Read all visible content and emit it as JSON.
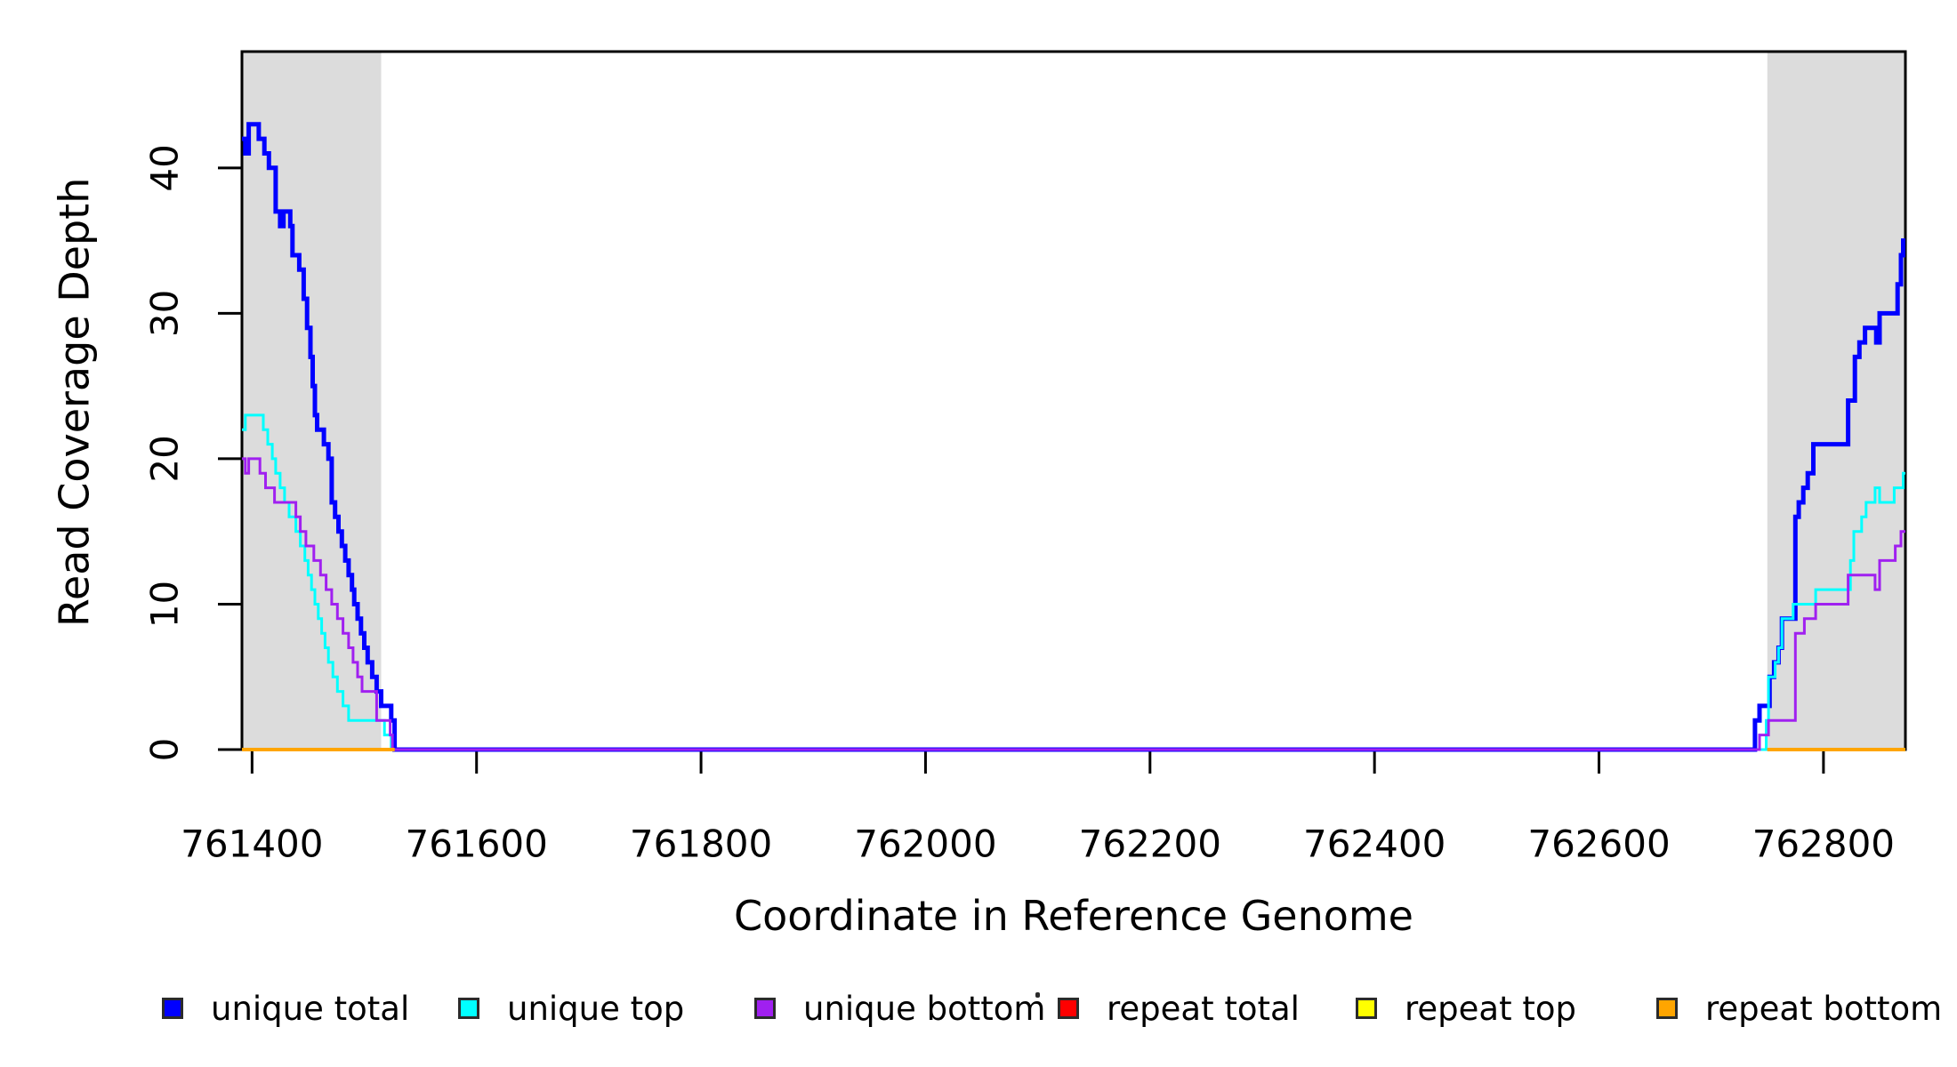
{
  "figure": {
    "background": "#FFFFFF",
    "band_color": "#DCDCDC",
    "axis_color": "#000000",
    "text_color": "#000000"
  },
  "chart_data": {
    "type": "line",
    "subtype": "step",
    "title": "",
    "xlabel": "Coordinate in Reference Genome",
    "ylabel": "Read Coverage Depth",
    "xlim": [
      761391,
      762873
    ],
    "ylim": [
      0,
      48
    ],
    "x_ticks": [
      761400,
      761600,
      761800,
      762000,
      762200,
      762400,
      762600,
      762800
    ],
    "y_ticks": [
      0,
      10,
      20,
      30,
      40
    ],
    "grid": false,
    "legend_position": "bottom",
    "shaded_regions": [
      {
        "name": "repeat-region-left",
        "x1": 761391,
        "x2": 761515
      },
      {
        "name": "repeat-region-right",
        "x1": 762750,
        "x2": 762873
      }
    ],
    "annotations": [
      {
        "type": "small-dot",
        "description": "tiny stray mark left of repeat total legend entry"
      }
    ],
    "series": [
      {
        "name": "unique total",
        "color": "#0000FF",
        "width": 5,
        "segments": [
          {
            "steps": [
              [
                761391,
                42
              ],
              [
                761394,
                41
              ],
              [
                761397,
                43
              ],
              [
                761406,
                42
              ],
              [
                761411,
                41
              ],
              [
                761415,
                40
              ],
              [
                761421,
                37
              ],
              [
                761425,
                36
              ],
              [
                761428,
                37
              ],
              [
                761434,
                36
              ],
              [
                761436,
                34
              ],
              [
                761442,
                33
              ],
              [
                761446,
                31
              ],
              [
                761449,
                29
              ],
              [
                761452,
                27
              ],
              [
                761454,
                25
              ],
              [
                761456,
                23
              ],
              [
                761458,
                22
              ],
              [
                761464,
                21
              ],
              [
                761468,
                20
              ],
              [
                761471,
                17
              ],
              [
                761474,
                16
              ],
              [
                761477,
                15
              ],
              [
                761480,
                14
              ],
              [
                761483,
                13
              ],
              [
                761486,
                12
              ],
              [
                761489,
                11
              ],
              [
                761491,
                10
              ],
              [
                761494,
                9
              ],
              [
                761497,
                8
              ],
              [
                761500,
                7
              ],
              [
                761503,
                6
              ],
              [
                761507,
                5
              ],
              [
                761511,
                4
              ],
              [
                761515,
                3
              ],
              [
                761524,
                2
              ],
              [
                761527,
                0
              ],
              [
                762739,
                2
              ],
              [
                762743,
                3
              ],
              [
                762752,
                5
              ],
              [
                762756,
                6
              ],
              [
                762760,
                7
              ],
              [
                762763,
                9
              ],
              [
                762775,
                16
              ],
              [
                762778,
                17
              ],
              [
                762782,
                18
              ],
              [
                762786,
                19
              ],
              [
                762791,
                21
              ],
              [
                762822,
                24
              ],
              [
                762828,
                27
              ],
              [
                762832,
                28
              ],
              [
                762837,
                29
              ],
              [
                762847,
                28
              ],
              [
                762850,
                30
              ],
              [
                762866,
                32
              ],
              [
                762869,
                34
              ],
              [
                762871,
                35
              ]
            ],
            "end": 762873
          }
        ]
      },
      {
        "name": "unique top",
        "color": "#00FFFF",
        "width": 3,
        "segments": [
          {
            "steps": [
              [
                761391,
                22
              ],
              [
                761394,
                23
              ],
              [
                761410,
                22
              ],
              [
                761414,
                21
              ],
              [
                761418,
                20
              ],
              [
                761421,
                19
              ],
              [
                761425,
                18
              ],
              [
                761429,
                17
              ],
              [
                761433,
                16
              ],
              [
                761439,
                15
              ],
              [
                761443,
                14
              ],
              [
                761447,
                13
              ],
              [
                761450,
                12
              ],
              [
                761453,
                11
              ],
              [
                761456,
                10
              ],
              [
                761459,
                9
              ],
              [
                761462,
                8
              ],
              [
                761465,
                7
              ],
              [
                761468,
                6
              ],
              [
                761472,
                5
              ],
              [
                761476,
                4
              ],
              [
                761481,
                3
              ],
              [
                761486,
                2
              ],
              [
                761518,
                1
              ],
              [
                761524,
                0
              ],
              [
                762749,
                2
              ],
              [
                762751,
                5
              ],
              [
                762757,
                6
              ],
              [
                762760,
                7
              ],
              [
                762763,
                9
              ],
              [
                762773,
                10
              ],
              [
                762793,
                11
              ],
              [
                762824,
                13
              ],
              [
                762827,
                15
              ],
              [
                762834,
                16
              ],
              [
                762838,
                17
              ],
              [
                762846,
                18
              ],
              [
                762850,
                17
              ],
              [
                762863,
                18
              ],
              [
                762871,
                19
              ]
            ],
            "end": 762873
          }
        ]
      },
      {
        "name": "unique bottom",
        "color": "#A020F0",
        "width": 3,
        "segments": [
          {
            "steps": [
              [
                761391,
                20
              ],
              [
                761394,
                19
              ],
              [
                761397,
                20
              ],
              [
                761407,
                19
              ],
              [
                761412,
                18
              ],
              [
                761420,
                17
              ],
              [
                761439,
                16
              ],
              [
                761443,
                15
              ],
              [
                761448,
                14
              ],
              [
                761455,
                13
              ],
              [
                761461,
                12
              ],
              [
                761466,
                11
              ],
              [
                761471,
                10
              ],
              [
                761476,
                9
              ],
              [
                761481,
                8
              ],
              [
                761486,
                7
              ],
              [
                761490,
                6
              ],
              [
                761494,
                5
              ],
              [
                761498,
                4
              ],
              [
                761511,
                2
              ],
              [
                761523,
                1
              ],
              [
                761525,
                0
              ],
              [
                762743,
                1
              ],
              [
                762751,
                2
              ],
              [
                762775,
                8
              ],
              [
                762783,
                9
              ],
              [
                762793,
                10
              ],
              [
                762822,
                12
              ],
              [
                762846,
                11
              ],
              [
                762850,
                13
              ],
              [
                762864,
                14
              ],
              [
                762869,
                15
              ]
            ],
            "end": 762873
          }
        ]
      },
      {
        "name": "repeat total",
        "color": "#FF0000",
        "width": 3,
        "segments": [
          {
            "steps": [
              [
                761391,
                0
              ]
            ],
            "end": 761527
          },
          {
            "steps": [
              [
                762750,
                0
              ]
            ],
            "end": 762873
          }
        ]
      },
      {
        "name": "repeat top",
        "color": "#FFFF00",
        "width": 3,
        "segments": [
          {
            "steps": [
              [
                761391,
                0
              ]
            ],
            "end": 761527
          },
          {
            "steps": [
              [
                762750,
                0
              ]
            ],
            "end": 762873
          }
        ]
      },
      {
        "name": "repeat bottom",
        "color": "#FFA500",
        "width": 4,
        "segments": [
          {
            "steps": [
              [
                761391,
                0
              ]
            ],
            "end": 761527
          },
          {
            "steps": [
              [
                762750,
                0
              ]
            ],
            "end": 762873
          }
        ]
      }
    ],
    "legend": {
      "entries": [
        {
          "label": "unique total",
          "color": "#0000FF"
        },
        {
          "label": "unique top",
          "color": "#00FFFF"
        },
        {
          "label": "unique bottom",
          "color": "#A020F0"
        },
        {
          "label": "repeat total",
          "color": "#FF0000"
        },
        {
          "label": "repeat top",
          "color": "#FFFF00"
        },
        {
          "label": "repeat bottom",
          "color": "#FFA500"
        }
      ]
    }
  }
}
